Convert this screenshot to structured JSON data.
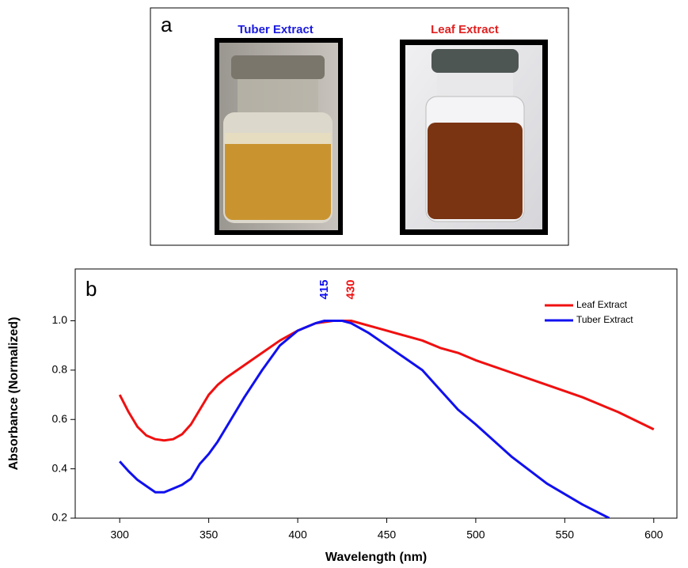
{
  "panel_a": {
    "label": "a",
    "images": [
      {
        "title": "Tuber Extract",
        "color": "#1a1adf"
      },
      {
        "title": "Leaf Extract",
        "color": "#e02020"
      }
    ]
  },
  "chart_data": {
    "type": "line",
    "panel_label": "b",
    "x_label": "Wavelength (nm)",
    "y_label": "Absorbance (Normalized)",
    "xlim": [
      275,
      613
    ],
    "ylim": [
      0.2,
      1.21
    ],
    "xticks": [
      300,
      350,
      400,
      450,
      500,
      550,
      600
    ],
    "yticks": [
      0.2,
      0.4,
      0.6,
      0.8,
      {
        "value": 1,
        "label": "1.0"
      }
    ],
    "legend": "upper right",
    "series": [
      {
        "name": "Leaf Extract",
        "color": "#f01010",
        "x": [
          300,
          305,
          310,
          315,
          320,
          325,
          330,
          335,
          340,
          345,
          350,
          355,
          360,
          370,
          380,
          390,
          400,
          410,
          420,
          430,
          440,
          450,
          460,
          470,
          480,
          490,
          500,
          520,
          540,
          560,
          580,
          600
        ],
        "values": [
          0.7,
          0.63,
          0.57,
          0.535,
          0.52,
          0.515,
          0.52,
          0.54,
          0.58,
          0.64,
          0.7,
          0.74,
          0.77,
          0.82,
          0.87,
          0.92,
          0.96,
          0.99,
          1.0,
          1.0,
          0.98,
          0.96,
          0.94,
          0.92,
          0.89,
          0.87,
          0.84,
          0.79,
          0.74,
          0.69,
          0.63,
          0.56
        ]
      },
      {
        "name": "Tuber Extract",
        "color": "#1010f0",
        "x": [
          300,
          305,
          310,
          315,
          320,
          325,
          330,
          335,
          340,
          345,
          350,
          355,
          360,
          370,
          380,
          390,
          400,
          410,
          415,
          425,
          430,
          440,
          450,
          460,
          470,
          480,
          490,
          500,
          520,
          540,
          560,
          575
        ],
        "values": [
          0.43,
          0.39,
          0.355,
          0.33,
          0.305,
          0.305,
          0.32,
          0.335,
          0.36,
          0.42,
          0.46,
          0.51,
          0.57,
          0.69,
          0.8,
          0.9,
          0.96,
          0.99,
          1.0,
          1.0,
          0.99,
          0.95,
          0.9,
          0.85,
          0.8,
          0.72,
          0.64,
          0.58,
          0.45,
          0.34,
          0.255,
          0.2
        ]
      }
    ],
    "annotations": [
      {
        "text": "415",
        "x": 415,
        "color": "#1010f0"
      },
      {
        "text": "430",
        "x": 430,
        "color": "#f01010"
      }
    ]
  }
}
